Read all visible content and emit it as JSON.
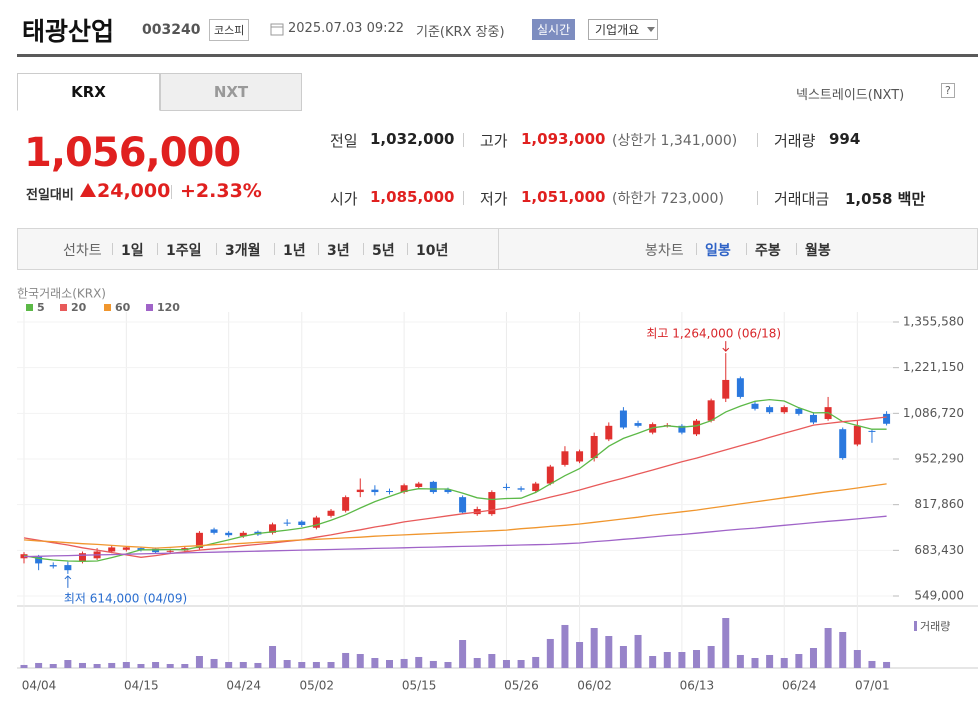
{
  "header": {
    "name": "태광산업",
    "code": "003240",
    "market": "코스피",
    "datetime": "2025.07.03 09:22",
    "basis": "기준(KRX 장중)",
    "realtime": "실시간",
    "company_info": "기업개요"
  },
  "tabs": [
    "KRX",
    "NXT"
  ],
  "selected_tab": "KRX",
  "nxt_link": "넥스트레이드(NXT)",
  "nxt_help": "?",
  "price": {
    "current": "1,056,000",
    "change_label": "전일대비",
    "change": "24,000",
    "change_pct": "+2.33%",
    "color": "#e0201f"
  },
  "quote": {
    "rows": [
      [
        {
          "label": "전일",
          "value": "1,032,000"
        },
        {
          "label": "고가",
          "value": "1,093,000",
          "note": "(상한가 1,341,000)",
          "color": "#e0201f"
        },
        {
          "label": "거래량",
          "value": "994"
        }
      ],
      [
        {
          "label": "시가",
          "value": "1,085,000",
          "color": "#e0201f"
        },
        {
          "label": "저가",
          "value": "1,051,000",
          "note": "(하한가 723,000)",
          "color": "#e0201f"
        },
        {
          "label": "거래대금",
          "value": "1,058 백만"
        }
      ]
    ]
  },
  "periods": {
    "line_chart": "선차트",
    "line_options": [
      "1일",
      "1주일",
      "3개월",
      "1년",
      "3년",
      "5년",
      "10년"
    ],
    "candle_chart": "봉차트",
    "candle_options": [
      "일봉",
      "주봉",
      "월봉"
    ],
    "selected": "일봉"
  },
  "chart_data": {
    "type": "candlestick",
    "source": "한국거래소(KRX)",
    "categories": [
      "04/04",
      null,
      null,
      null,
      null,
      null,
      null,
      "04/15",
      null,
      null,
      null,
      null,
      null,
      null,
      "04/24",
      null,
      null,
      null,
      null,
      "05/02",
      null,
      null,
      null,
      null,
      null,
      null,
      "05/15",
      null,
      null,
      null,
      null,
      null,
      null,
      "05/26",
      null,
      null,
      null,
      null,
      "06/02",
      null,
      null,
      null,
      null,
      null,
      null,
      "06/13",
      null,
      null,
      null,
      null,
      null,
      null,
      "06/24",
      null,
      null,
      null,
      null,
      "07/01",
      null,
      null
    ],
    "open": [
      660000,
      665000,
      640000,
      640000,
      650000,
      660000,
      680000,
      685000,
      690000,
      688000,
      680000,
      683000,
      690000,
      745000,
      735000,
      725000,
      738000,
      735000,
      765000,
      768000,
      750000,
      785000,
      800000,
      855000,
      862000,
      858000,
      855000,
      870000,
      885000,
      862000,
      840000,
      790000,
      790000,
      870000,
      866000,
      858000,
      880000,
      935000,
      945000,
      955000,
      1010000,
      1095000,
      1058000,
      1030000,
      1050000,
      1050000,
      1025000,
      1065000,
      1130000,
      1190000,
      1115000,
      1105000,
      1090000,
      1100000,
      1082000,
      1070000,
      1040000,
      995000,
      1035000,
      1085000
    ],
    "high": [
      678000,
      670000,
      648000,
      650000,
      680000,
      690000,
      698000,
      696000,
      694000,
      692000,
      688000,
      694000,
      740000,
      750000,
      740000,
      740000,
      742000,
      765000,
      775000,
      772000,
      785000,
      805000,
      845000,
      895000,
      875000,
      865000,
      880000,
      885000,
      888000,
      868000,
      845000,
      812000,
      860000,
      880000,
      872000,
      885000,
      935000,
      990000,
      980000,
      1030000,
      1060000,
      1105000,
      1065000,
      1060000,
      1058000,
      1055000,
      1070000,
      1130000,
      1264000,
      1195000,
      1120000,
      1110000,
      1110000,
      1105000,
      1090000,
      1135000,
      1045000,
      1065000,
      1040000,
      1093000
    ],
    "low": [
      645000,
      625000,
      630000,
      614000,
      645000,
      655000,
      675000,
      680000,
      680000,
      674000,
      676000,
      680000,
      685000,
      730000,
      722000,
      720000,
      726000,
      730000,
      755000,
      752000,
      745000,
      780000,
      795000,
      840000,
      845000,
      848000,
      850000,
      865000,
      850000,
      850000,
      790000,
      785000,
      785000,
      860000,
      856000,
      852000,
      875000,
      930000,
      940000,
      945000,
      1005000,
      1040000,
      1045000,
      1025000,
      1045000,
      1025000,
      1020000,
      1060000,
      1120000,
      1130000,
      1095000,
      1085000,
      1085000,
      1080000,
      1055000,
      1065000,
      950000,
      990000,
      1000000,
      1051000
    ],
    "close": [
      672000,
      645000,
      636000,
      625000,
      675000,
      680000,
      692000,
      692000,
      684000,
      678000,
      682000,
      690000,
      735000,
      735000,
      728000,
      735000,
      730000,
      760000,
      762000,
      758000,
      780000,
      800000,
      840000,
      862000,
      855000,
      855000,
      875000,
      880000,
      855000,
      855000,
      795000,
      805000,
      855000,
      868000,
      862000,
      880000,
      930000,
      975000,
      975000,
      1020000,
      1050000,
      1045000,
      1050000,
      1055000,
      1052000,
      1030000,
      1065000,
      1125000,
      1185000,
      1135000,
      1100000,
      1090000,
      1105000,
      1085000,
      1060000,
      1105000,
      955000,
      1050000,
      1032000,
      1056000
    ],
    "up_color": "#e0312f",
    "down_color": "#2a78de",
    "series": [
      {
        "name": "5",
        "color": "#5cb947",
        "values": [
          668000,
          660000,
          655000,
          652000,
          651000,
          652000,
          662000,
          673000,
          685000,
          685000,
          686000,
          685000,
          694000,
          704000,
          714000,
          725000,
          733000,
          738000,
          743000,
          749000,
          758000,
          772000,
          788000,
          808000,
          827000,
          842000,
          857000,
          865000,
          864000,
          864000,
          852000,
          838000,
          833000,
          836000,
          837000,
          854000,
          879000,
          903000,
          924000,
          956000,
          990000,
          1013000,
          1028000,
          1044000,
          1050000,
          1046000,
          1050000,
          1065000,
          1091000,
          1108000,
          1122000,
          1127000,
          1123000,
          1103000,
          1088000,
          1089000,
          1062000,
          1051000,
          1040000,
          1040000
        ]
      },
      {
        "name": "20",
        "color": "#e85a5a",
        "values": [
          720000,
          713000,
          706000,
          699000,
          691000,
          684000,
          677000,
          670000,
          663000,
          668000,
          674000,
          679000,
          684000,
          688000,
          692000,
          697000,
          701000,
          705000,
          710000,
          714000,
          722000,
          729000,
          737000,
          744000,
          752000,
          759000,
          767000,
          773000,
          779000,
          785000,
          791000,
          796000,
          802000,
          808000,
          819000,
          829000,
          840000,
          850000,
          861000,
          873000,
          885000,
          896000,
          908000,
          920000,
          932000,
          944000,
          955000,
          967000,
          979000,
          991000,
          1003000,
          1016000,
          1028000,
          1040000,
          1052000,
          1057000,
          1062000,
          1066000,
          1071000,
          1076000
        ]
      },
      {
        "name": "60",
        "color": "#f0962e",
        "values": [
          714000,
          711000,
          709000,
          706000,
          703000,
          701000,
          698000,
          695000,
          693000,
          690000,
          692000,
          695000,
          697000,
          700000,
          702000,
          704000,
          707000,
          709000,
          712000,
          714000,
          716000,
          718000,
          720000,
          722000,
          725000,
          727000,
          729000,
          731000,
          733000,
          735000,
          737000,
          739000,
          741000,
          743000,
          747000,
          750000,
          754000,
          757000,
          761000,
          766000,
          771000,
          776000,
          781000,
          787000,
          792000,
          797000,
          802000,
          808000,
          814000,
          820000,
          826000,
          832000,
          838000,
          844000,
          850000,
          856000,
          861000,
          867000,
          873000,
          879000
        ]
      },
      {
        "name": "120",
        "color": "#a064c8",
        "values": [
          665000,
          666000,
          667000,
          668000,
          669000,
          670000,
          671000,
          672000,
          673000,
          674000,
          675000,
          676000,
          677000,
          678000,
          679000,
          680000,
          681000,
          682000,
          683000,
          684000,
          685000,
          686000,
          687000,
          688000,
          689000,
          690000,
          691000,
          692000,
          693000,
          694000,
          695000,
          696000,
          697000,
          698000,
          699000,
          700000,
          701000,
          703000,
          705000,
          709000,
          712000,
          716000,
          719000,
          723000,
          727000,
          730000,
          734000,
          738000,
          742000,
          746000,
          749000,
          753000,
          757000,
          761000,
          765000,
          769000,
          772000,
          776000,
          780000,
          784000
        ]
      }
    ],
    "ylim": [
      549000,
      1355580
    ],
    "yticks": [
      {
        "value": 549000,
        "label": "549,000"
      },
      {
        "value": 683430,
        "label": "683,430"
      },
      {
        "value": 817860,
        "label": "817,860"
      },
      {
        "value": 952290,
        "label": "952,290"
      },
      {
        "value": 1086720,
        "label": "1,086,720"
      },
      {
        "value": 1221150,
        "label": "1,221,150"
      },
      {
        "value": 1355580,
        "label": "1,355,580"
      }
    ],
    "annotations": [
      {
        "text": "최고 1,264,000 (06/18)",
        "anchor": "high",
        "color": "#d8262a"
      },
      {
        "text": "최저 614,000 (04/09)",
        "anchor": "low",
        "color": "#2a6ed0"
      }
    ],
    "volume": {
      "name": "거래량",
      "color": "#9783c9",
      "values": [
        500,
        830,
        660,
        1320,
        830,
        660,
        830,
        990,
        660,
        990,
        660,
        660,
        1980,
        1490,
        990,
        990,
        830,
        3630,
        1320,
        990,
        990,
        990,
        2480,
        2310,
        1650,
        1320,
        1490,
        1820,
        1160,
        990,
        4620,
        1650,
        2310,
        1320,
        1320,
        1820,
        4790,
        7100,
        4290,
        6600,
        5280,
        3630,
        5450,
        1980,
        2640,
        2640,
        2970,
        3630,
        8250,
        2150,
        1650,
        2150,
        1650,
        2310,
        3300,
        6600,
        5940,
        2970,
        1160,
        994
      ]
    }
  }
}
